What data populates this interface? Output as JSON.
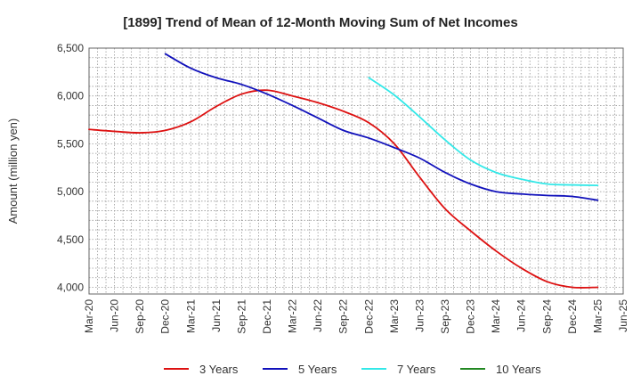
{
  "chart_data": {
    "type": "line",
    "title": "[1899]  Trend of Mean of 12-Month Moving Sum of Net Incomes",
    "xlabel": "",
    "ylabel": "Amount (million yen)",
    "ylim": [
      3930,
      6500
    ],
    "y_ticks": [
      4000,
      4500,
      5000,
      5500,
      6000,
      6500
    ],
    "y_tick_labels": [
      "4,000",
      "4,500",
      "5,000",
      "5,500",
      "6,000",
      "6,500"
    ],
    "x_ticks": [
      "Mar-20",
      "Jun-20",
      "Sep-20",
      "Dec-20",
      "Mar-21",
      "Jun-21",
      "Sep-21",
      "Dec-21",
      "Mar-22",
      "Jun-22",
      "Sep-22",
      "Dec-22",
      "Mar-23",
      "Jun-23",
      "Sep-23",
      "Dec-23",
      "Mar-24",
      "Jun-24",
      "Sep-24",
      "Dec-24",
      "Mar-25",
      "Jun-25"
    ],
    "grid": true,
    "legend_position": "bottom",
    "series": [
      {
        "name": "3 Years",
        "color": "#dd1111",
        "x": [
          "Mar-20",
          "Jun-20",
          "Sep-20",
          "Dec-20",
          "Mar-21",
          "Jun-21",
          "Sep-21",
          "Dec-21",
          "Mar-22",
          "Jun-22",
          "Sep-22",
          "Dec-22",
          "Mar-23",
          "Jun-23",
          "Sep-23",
          "Dec-23",
          "Mar-24",
          "Jun-24",
          "Sep-24",
          "Dec-24",
          "Mar-25"
        ],
        "values": [
          5650,
          5630,
          5615,
          5640,
          5730,
          5890,
          6020,
          6060,
          6000,
          5930,
          5840,
          5720,
          5500,
          5150,
          4820,
          4590,
          4380,
          4200,
          4060,
          4000,
          4000
        ]
      },
      {
        "name": "5 Years",
        "color": "#1111bb",
        "x": [
          "Dec-20",
          "Mar-21",
          "Jun-21",
          "Sep-21",
          "Dec-21",
          "Mar-22",
          "Jun-22",
          "Sep-22",
          "Dec-22",
          "Mar-23",
          "Jun-23",
          "Sep-23",
          "Dec-23",
          "Mar-24",
          "Jun-24",
          "Sep-24",
          "Dec-24",
          "Mar-25"
        ],
        "values": [
          6440,
          6290,
          6190,
          6120,
          6020,
          5900,
          5770,
          5640,
          5560,
          5460,
          5350,
          5200,
          5080,
          5000,
          4975,
          4960,
          4950,
          4910
        ]
      },
      {
        "name": "7 Years",
        "color": "#33e8e8",
        "x": [
          "Dec-22",
          "Mar-23",
          "Jun-23",
          "Sep-23",
          "Dec-23",
          "Mar-24",
          "Jun-24",
          "Sep-24",
          "Dec-24",
          "Mar-25"
        ],
        "values": [
          6190,
          6010,
          5780,
          5540,
          5330,
          5200,
          5130,
          5080,
          5070,
          5065
        ]
      },
      {
        "name": "10 Years",
        "color": "#228822",
        "x": [],
        "values": []
      }
    ]
  }
}
